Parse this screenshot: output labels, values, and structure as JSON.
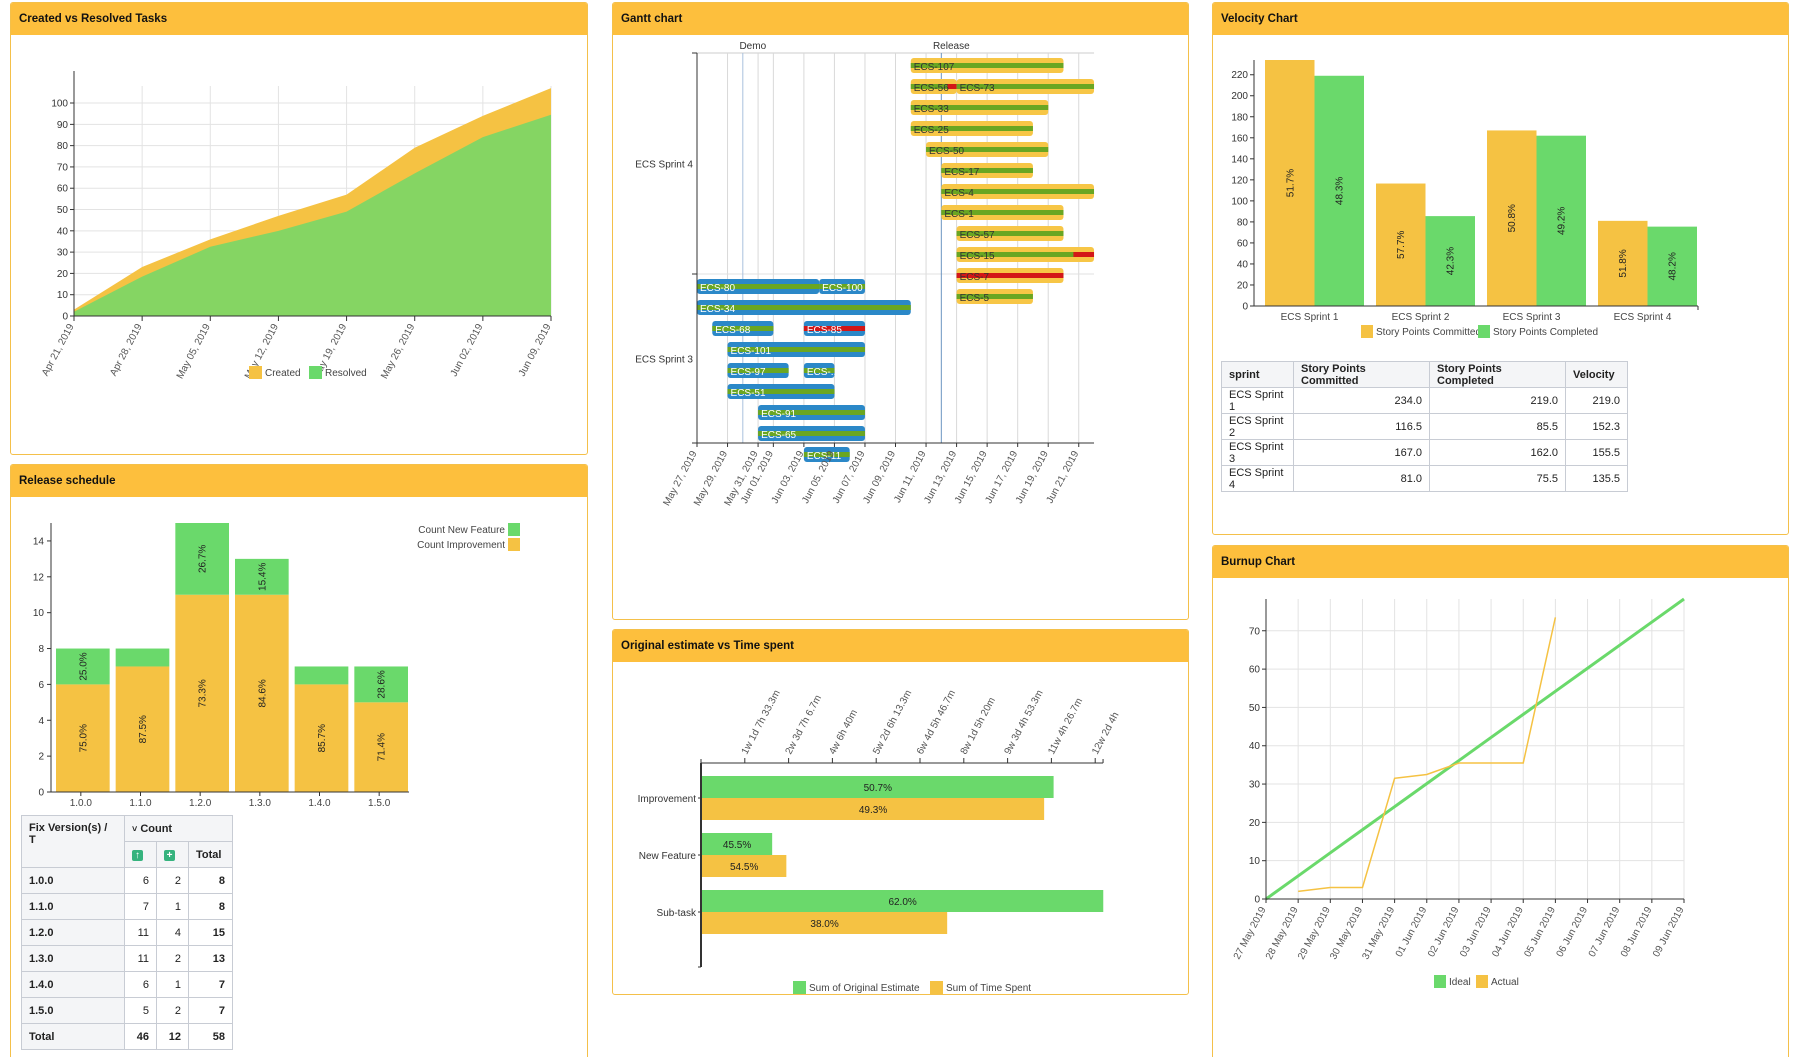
{
  "colors": {
    "header": "#fdbf3d",
    "created": "#f5c243",
    "resolved": "#85d563",
    "green": "#6ad96b",
    "yellow": "#f5c243",
    "gantt_sprint4": "#f7c646",
    "gantt_sprint3": "#2b88c8",
    "gantt_progress": "#6aa622",
    "gantt_overdue": "#d31717",
    "ideal": "#6ad96b",
    "actual": "#f5c243"
  },
  "panels": {
    "created_resolved": {
      "title": "Created vs Resolved Tasks"
    },
    "release_schedule": {
      "title": "Release schedule"
    },
    "gantt": {
      "title": "Gantt chart"
    },
    "original_estimate": {
      "title": "Original estimate vs Time spent"
    },
    "velocity": {
      "title": "Velocity Chart"
    },
    "burnup": {
      "title": "Burnup Chart"
    }
  },
  "chart_data": [
    {
      "id": "created_resolved",
      "type": "area",
      "title": "Created vs Resolved Tasks",
      "x": [
        "Apr 21, 2019",
        "Apr 28, 2019",
        "May 05, 2019",
        "May 12, 2019",
        "May 19, 2019",
        "May 26, 2019",
        "Jun 02, 2019",
        "Jun 09, 2019"
      ],
      "series": [
        {
          "name": "Created",
          "values": [
            3,
            23,
            36,
            47,
            57,
            79,
            94,
            107
          ]
        },
        {
          "name": "Resolved",
          "values": [
            2,
            18.5,
            32.5,
            40,
            49,
            67,
            84,
            94.5
          ]
        }
      ],
      "yticks": [
        0,
        10,
        20,
        30,
        40,
        50,
        60,
        70,
        80,
        90,
        100
      ],
      "ylim": [
        0,
        108
      ],
      "grid": true,
      "legend": "bottom"
    },
    {
      "id": "release_schedule",
      "type": "bar",
      "stacked": true,
      "title": "Release schedule",
      "categories": [
        "1.0.0",
        "1.1.0",
        "1.2.0",
        "1.3.0",
        "1.4.0",
        "1.5.0"
      ],
      "series": [
        {
          "name": "Count Improvement",
          "values": [
            6,
            7,
            11,
            11,
            6,
            5
          ],
          "labels": [
            "75.0%",
            "87.5%",
            "73.3%",
            "84.6%",
            "85.7%",
            "71.4%"
          ]
        },
        {
          "name": "Count New Feature",
          "values": [
            2,
            1,
            4,
            2,
            1,
            2
          ],
          "labels": [
            "25.0%",
            "",
            "26.7%",
            "15.4%",
            "",
            "28.6%"
          ]
        }
      ],
      "yticks": [
        0,
        2,
        4,
        6,
        8,
        10,
        12,
        14
      ],
      "ylim": [
        0,
        15
      ],
      "legend": "top-right"
    },
    {
      "id": "gantt",
      "type": "gantt",
      "title": "Gantt chart",
      "start_date": "May 27, 2019",
      "xticks": [
        {
          "label": "May 27, 2019",
          "day": 0
        },
        {
          "label": "May 29, 2019",
          "day": 2
        },
        {
          "label": "May 31, 2019",
          "day": 4
        },
        {
          "label": "Jun 01, 2019",
          "day": 5
        },
        {
          "label": "Jun 03, 2019",
          "day": 7
        },
        {
          "label": "Jun 05, 2019",
          "day": 9
        },
        {
          "label": "Jun 07, 2019",
          "day": 11
        },
        {
          "label": "Jun 09, 2019",
          "day": 13
        },
        {
          "label": "Jun 11, 2019",
          "day": 15
        },
        {
          "label": "Jun 13, 2019",
          "day": 17
        },
        {
          "label": "Jun 15, 2019",
          "day": 19
        },
        {
          "label": "Jun 17, 2019",
          "day": 21
        },
        {
          "label": "Jun 19, 2019",
          "day": 23
        },
        {
          "label": "Jun 21, 2019",
          "day": 25
        }
      ],
      "xlim_days": [
        0,
        26
      ],
      "markers": [
        {
          "label": "Demo",
          "day": 3
        },
        {
          "label": "Release",
          "day": 16
        }
      ],
      "groups": [
        {
          "name": "ECS Sprint 4",
          "style": "sprint4",
          "rows": [
            [
              {
                "key": "ECS-107",
                "start": 14,
                "end": 24,
                "progress": 1,
                "overdue": 0
              }
            ],
            [
              {
                "key": "ECS-56",
                "start": 14,
                "end": 17,
                "progress": 1,
                "overdue": 0.2
              },
              {
                "key": "ECS-73",
                "start": 17,
                "end": 26,
                "progress": 1,
                "overdue": 0
              }
            ],
            [
              {
                "key": "ECS-33",
                "start": 14,
                "end": 23,
                "progress": 1,
                "overdue": 0
              }
            ],
            [
              {
                "key": "ECS-25",
                "start": 14,
                "end": 22,
                "progress": 1,
                "overdue": 0
              }
            ],
            [
              {
                "key": "ECS-50",
                "start": 15,
                "end": 23,
                "progress": 1,
                "overdue": 0
              }
            ],
            [
              {
                "key": "ECS-17",
                "start": 16,
                "end": 22,
                "progress": 1,
                "overdue": 0
              }
            ],
            [
              {
                "key": "ECS-4",
                "start": 16,
                "end": 26,
                "progress": 1,
                "overdue": 0
              }
            ],
            [
              {
                "key": "ECS-1",
                "start": 16,
                "end": 24,
                "progress": 1,
                "overdue": 0
              }
            ],
            [
              {
                "key": "ECS-57",
                "start": 17,
                "end": 24,
                "progress": 1,
                "overdue": 0
              }
            ],
            [
              {
                "key": "ECS-15",
                "start": 17,
                "end": 26,
                "progress": 1,
                "overdue": 0.15
              }
            ],
            [
              {
                "key": "ECS-7",
                "start": 17,
                "end": 24,
                "progress": 1,
                "overdue": 1
              }
            ],
            [
              {
                "key": "ECS-5",
                "start": 17,
                "end": 22,
                "progress": 1,
                "overdue": 0
              }
            ]
          ]
        },
        {
          "name": "ECS Sprint 3",
          "style": "sprint3",
          "rows": [
            [
              {
                "key": "ECS-80",
                "start": 0,
                "end": 8,
                "progress": 1,
                "overdue": 0
              },
              {
                "key": "ECS-100",
                "start": 8,
                "end": 11,
                "progress": 1,
                "overdue": 0
              }
            ],
            [
              {
                "key": "ECS-34",
                "start": 0,
                "end": 14,
                "progress": 1,
                "overdue": 0
              }
            ],
            [
              {
                "key": "ECS-68",
                "start": 1,
                "end": 5,
                "progress": 1,
                "overdue": 0
              },
              {
                "key": "ECS-85",
                "start": 7,
                "end": 11,
                "progress": 1,
                "overdue": 1
              }
            ],
            [
              {
                "key": "ECS-101",
                "start": 2,
                "end": 11,
                "progress": 1,
                "overdue": 0
              }
            ],
            [
              {
                "key": "ECS-97",
                "start": 2,
                "end": 6,
                "progress": 1,
                "overdue": 0
              },
              {
                "key": "ECS-...",
                "start": 7,
                "end": 9,
                "progress": 1,
                "overdue": 0
              }
            ],
            [
              {
                "key": "ECS-51",
                "start": 2,
                "end": 9,
                "progress": 1,
                "overdue": 0
              }
            ],
            [
              {
                "key": "ECS-91",
                "start": 4,
                "end": 11,
                "progress": 1,
                "overdue": 0
              }
            ],
            [
              {
                "key": "ECS-65",
                "start": 4,
                "end": 11,
                "progress": 1,
                "overdue": 0
              }
            ],
            [
              {
                "key": "ECS-11",
                "start": 7,
                "end": 10,
                "progress": 1,
                "overdue": 0
              }
            ]
          ]
        }
      ]
    },
    {
      "id": "original_estimate",
      "type": "bar",
      "orientation": "horizontal",
      "title": "Original estimate vs Time spent",
      "categories": [
        "Improvement",
        "New Feature",
        "Sub-task"
      ],
      "unit": "hours",
      "series": [
        {
          "name": "Sum of Original Estimate",
          "values": [
            446,
            89,
            509
          ],
          "labels": [
            "50.7%",
            "45.5%",
            "62.0%"
          ]
        },
        {
          "name": "Sum of Time Spent",
          "values": [
            434,
            107,
            311
          ],
          "labels": [
            "49.3%",
            "54.5%",
            "38.0%"
          ]
        }
      ],
      "xticks": [
        "1w 1d 7h 33.3m",
        "2w 3d 7h 6.7m",
        "4w 6h 40m",
        "5w 2d 6h 13.3m",
        "6w 4d 5h 46.7m",
        "8w 1d 5h 20m",
        "9w 3d 4h 53.3m",
        "11w 4h 26.7m",
        "12w 2d 4h"
      ],
      "xtick_step_hours": 55.56,
      "xlim": [
        0,
        510
      ],
      "legend": "bottom"
    },
    {
      "id": "velocity",
      "type": "bar",
      "title": "Velocity Chart",
      "categories": [
        "ECS Sprint 1",
        "ECS Sprint 2",
        "ECS Sprint 3",
        "ECS Sprint 4"
      ],
      "series": [
        {
          "name": "Story Points Committed",
          "values": [
            234.0,
            116.5,
            167.0,
            81.0
          ],
          "labels": [
            "51.7%",
            "57.7%",
            "50.8%",
            "51.8%"
          ]
        },
        {
          "name": "Story Points Completed",
          "values": [
            219.0,
            85.5,
            162.0,
            75.5
          ],
          "labels": [
            "48.3%",
            "42.3%",
            "49.2%",
            "48.2%"
          ]
        }
      ],
      "yticks": [
        0,
        20,
        40,
        60,
        80,
        100,
        120,
        140,
        160,
        180,
        200,
        220
      ],
      "ylim": [
        0,
        234
      ],
      "legend": "bottom"
    },
    {
      "id": "burnup",
      "type": "line",
      "title": "Burnup Chart",
      "x": [
        "27 May 2019",
        "28 May 2019",
        "29 May 2019",
        "30 May 2019",
        "31 May 2019",
        "01 Jun 2019",
        "02 Jun 2019",
        "03 Jun 2019",
        "04 Jun 2019",
        "05 Jun 2019",
        "06 Jun 2019",
        "07 Jun 2019",
        "08 Jun 2019",
        "09 Jun 2019"
      ],
      "series": [
        {
          "name": "Ideal",
          "values": [
            0,
            6.02,
            12.05,
            18.07,
            24.09,
            30.12,
            36.14,
            42.16,
            48.18,
            54.21,
            60.23,
            66.25,
            72.28,
            78.3
          ]
        },
        {
          "name": "Actual",
          "values": [
            null,
            2,
            3,
            3,
            31.5,
            32.5,
            35.5,
            35.5,
            35.5,
            73.5,
            null,
            null,
            null,
            null
          ]
        }
      ],
      "yticks": [
        0,
        10,
        20,
        30,
        40,
        50,
        60,
        70
      ],
      "ylim": [
        0,
        78.3
      ],
      "grid": true,
      "legend": "bottom"
    }
  ],
  "pivot": {
    "corner_label": "Fix Version(s) / T",
    "group_label": "Count",
    "group_caret": "˅",
    "col_icons": [
      "improvement-icon",
      "new-feature-icon"
    ],
    "col_icon_glyphs": [
      "↑",
      "+"
    ],
    "total_label": "Total",
    "rows": [
      {
        "version": "1.0.0",
        "improvement": 6,
        "new_feature": 2,
        "total": 8
      },
      {
        "version": "1.1.0",
        "improvement": 7,
        "new_feature": 1,
        "total": 8
      },
      {
        "version": "1.2.0",
        "improvement": 11,
        "new_feature": 4,
        "total": 15
      },
      {
        "version": "1.3.0",
        "improvement": 11,
        "new_feature": 2,
        "total": 13
      },
      {
        "version": "1.4.0",
        "improvement": 6,
        "new_feature": 1,
        "total": 7
      },
      {
        "version": "1.5.0",
        "improvement": 5,
        "new_feature": 2,
        "total": 7
      }
    ],
    "total_row": {
      "version": "Total",
      "improvement": 46,
      "new_feature": 12,
      "total": 58
    }
  },
  "velocity_table": {
    "headers": [
      "sprint",
      "Story Points Committed",
      "Story Points Completed",
      "Velocity"
    ],
    "rows": [
      [
        "ECS Sprint 1",
        "234.0",
        "219.0",
        "219.0"
      ],
      [
        "ECS Sprint 2",
        "116.5",
        "85.5",
        "152.3"
      ],
      [
        "ECS Sprint 3",
        "167.0",
        "162.0",
        "155.5"
      ],
      [
        "ECS Sprint 4",
        "81.0",
        "75.5",
        "135.5"
      ]
    ]
  }
}
